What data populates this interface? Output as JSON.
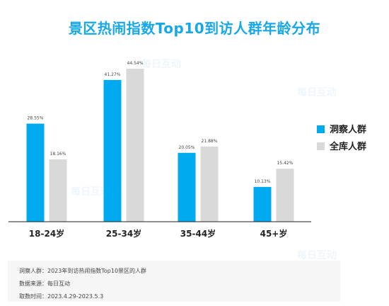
{
  "chart_data": {
    "type": "bar",
    "title": "景区热闹指数Top10到访人群年龄分布",
    "categories": [
      "18-24岁",
      "25-34岁",
      "35-44岁",
      "45+岁"
    ],
    "series": [
      {
        "name": "洞察人群",
        "values": [
          28.55,
          41.27,
          20.05,
          10.13
        ],
        "labels": [
          "28.55%",
          "41.27%",
          "20.05%",
          "10.13%"
        ],
        "color": "#00aaee"
      },
      {
        "name": "全库人群",
        "values": [
          18.16,
          44.54,
          21.88,
          15.42
        ],
        "labels": [
          "18.16%",
          "44.54%",
          "21.88%",
          "15.42%"
        ],
        "color": "#d9d9d9"
      }
    ],
    "ylim": [
      0,
      45
    ],
    "legend": "right",
    "grid": false
  },
  "footer": {
    "line1": "洞察人群：2023年到访热闹指数Top10景区的人群",
    "line2": "数据来源：每日互动",
    "line3": "取数时间：2023.4.29-2023.5.3"
  },
  "watermark": "每日互动",
  "colors": {
    "accent": "#18a8e8",
    "series1": "#00aaee",
    "series2": "#d9d9d9"
  }
}
